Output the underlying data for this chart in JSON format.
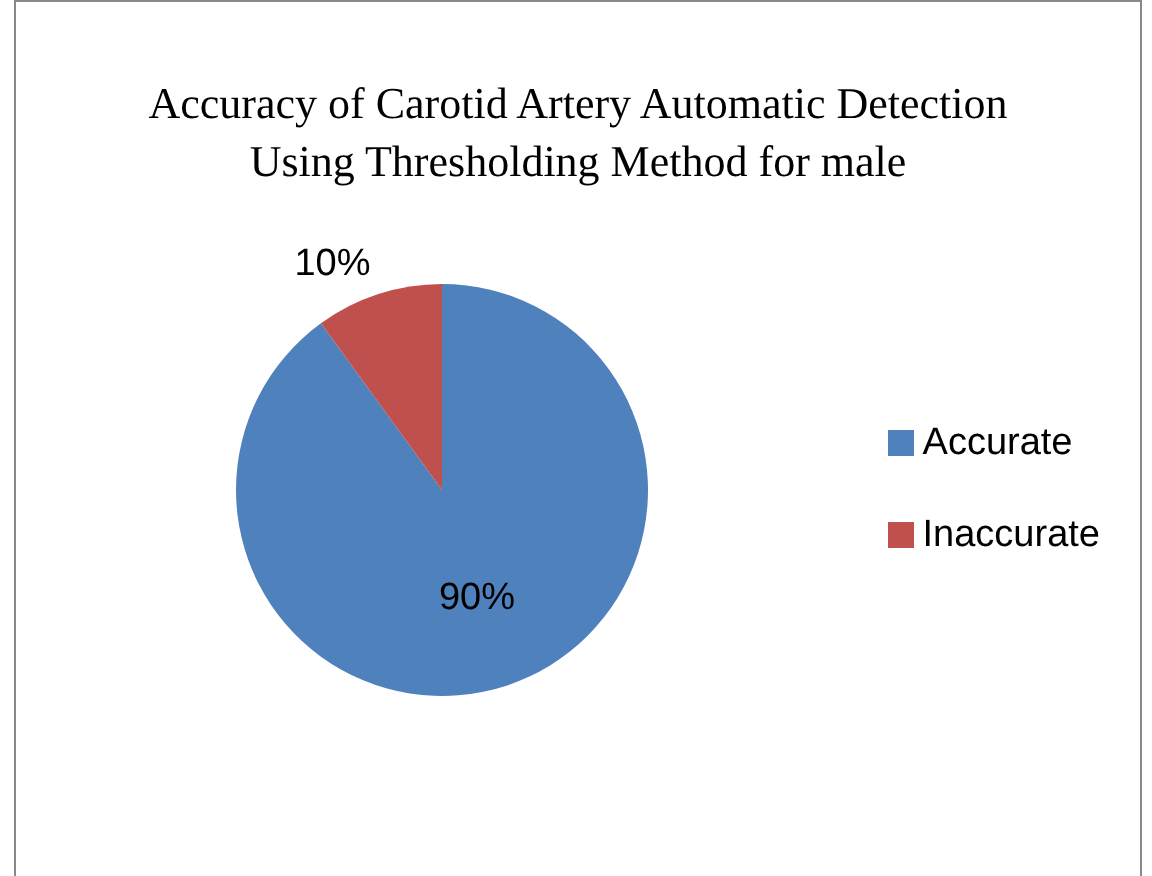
{
  "chart_data": {
    "type": "pie",
    "title": "Accuracy of Carotid Artery Automatic Detection Using Thresholding Method for male",
    "categories": [
      "Accurate",
      "Inaccurate"
    ],
    "values": [
      90,
      10
    ],
    "colors": [
      "#4f81bd",
      "#c0504d"
    ],
    "value_labels": [
      "90%",
      "10%"
    ],
    "legend": "right"
  }
}
